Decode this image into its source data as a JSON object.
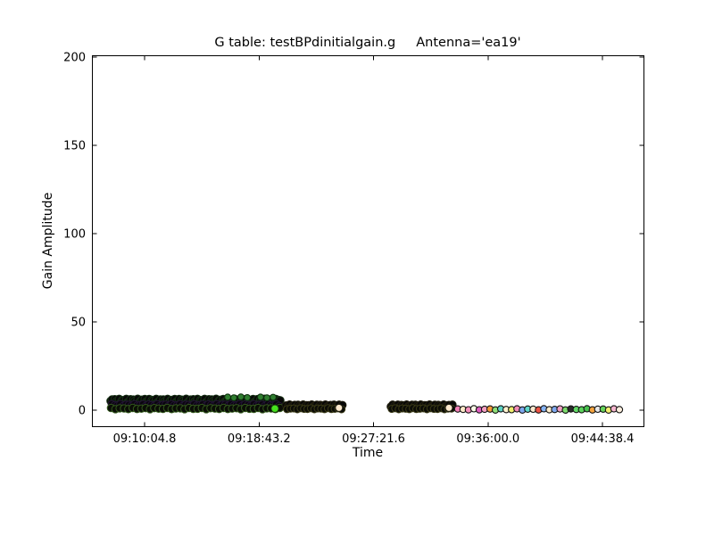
{
  "chart_data": {
    "type": "scatter",
    "title": "G table: testBPdinitialgain.g     Antenna='ea19'",
    "xlabel": "Time",
    "ylabel": "Gain Amplitude",
    "legend": "none",
    "grid": false,
    "marker": "circle",
    "background": "#ffffff",
    "frame_color": "#000000",
    "x_ticks": [
      {
        "label": "09:10:04.8",
        "seconds": 33004.8
      },
      {
        "label": "09:18:43.2",
        "seconds": 33523.2
      },
      {
        "label": "09:27:21.6",
        "seconds": 34041.6
      },
      {
        "label": "09:36:00.0",
        "seconds": 34560.0
      },
      {
        "label": "09:44:38.4",
        "seconds": 35078.4
      }
    ],
    "y_ticks": [
      {
        "label": "0",
        "value": 0
      },
      {
        "label": "50",
        "value": 50
      },
      {
        "label": "100",
        "value": 100
      },
      {
        "label": "150",
        "value": 150
      },
      {
        "label": "200",
        "value": 200
      }
    ],
    "xlim_seconds": [
      32766,
      35268
    ],
    "ylim": [
      -9.2,
      201.2
    ],
    "clusters": [
      {
        "name": "scan1-upper",
        "t_start": 32851,
        "t_end": 33619,
        "n": 120,
        "amp": 5.2,
        "amp_jitter": 1.2,
        "r": 4.3,
        "fill": "#070707",
        "edge": "#163014"
      },
      {
        "name": "scan1-mid",
        "t_start": 32856,
        "t_end": 33614,
        "n": 60,
        "amp": 2.9,
        "amp_jitter": 0.5,
        "r": 4.1,
        "fill": "#0a060d",
        "edge": "#221334"
      },
      {
        "name": "scan1-lower",
        "t_start": 32853,
        "t_end": 33617,
        "n": 40,
        "amp": 0.9,
        "amp_jitter": 0.35,
        "r": 4.2,
        "fill": "#0a0d06",
        "edge": "#33591c"
      },
      {
        "name": "scan2-upper",
        "t_start": 33646,
        "t_end": 33901,
        "n": 34,
        "amp": 2.6,
        "amp_jitter": 0.6,
        "r": 4.2,
        "fill": "#070707",
        "edge": "#201d0e"
      },
      {
        "name": "scan2-lower",
        "t_start": 33650,
        "t_end": 33897,
        "n": 17,
        "amp": 0.8,
        "amp_jitter": 0.3,
        "r": 4.0,
        "fill": "#0b0b06",
        "edge": "#3a3a16"
      },
      {
        "name": "scan3-upper",
        "t_start": 34120,
        "t_end": 34399,
        "n": 36,
        "amp": 2.6,
        "amp_jitter": 0.6,
        "r": 4.2,
        "fill": "#070707",
        "edge": "#201d0e"
      },
      {
        "name": "scan3-lower",
        "t_start": 34124,
        "t_end": 34395,
        "n": 18,
        "amp": 0.8,
        "amp_jitter": 0.3,
        "r": 4.0,
        "fill": "#0b0b06",
        "edge": "#3a3a16"
      }
    ],
    "highlight_points": [
      {
        "name": "green-glint",
        "t": 33381,
        "amp": 7.4,
        "r": 3.4,
        "fill": "#2f7d2f",
        "edge": "#0d2d0d"
      },
      {
        "name": "green-glint",
        "t": 33409,
        "amp": 7.0,
        "r": 3.4,
        "fill": "#2f7d2f",
        "edge": "#0d2d0d"
      },
      {
        "name": "green-glint",
        "t": 33441,
        "amp": 7.5,
        "r": 3.4,
        "fill": "#2f7d2f",
        "edge": "#0d2d0d"
      },
      {
        "name": "green-glint",
        "t": 33470,
        "amp": 7.1,
        "r": 3.4,
        "fill": "#2f7d2f",
        "edge": "#0d2d0d"
      },
      {
        "name": "green-glint",
        "t": 33530,
        "amp": 7.4,
        "r": 3.4,
        "fill": "#2f7d2f",
        "edge": "#0d2d0d"
      },
      {
        "name": "green-glint",
        "t": 33559,
        "amp": 7.0,
        "r": 3.4,
        "fill": "#2f7d2f",
        "edge": "#0d2d0d"
      },
      {
        "name": "green-glint",
        "t": 33587,
        "amp": 7.3,
        "r": 3.4,
        "fill": "#2f7d2f",
        "edge": "#0d2d0d"
      },
      {
        "name": "bright-green-dot",
        "t": 33595,
        "amp": 0.9,
        "r": 4.2,
        "fill": "#46e01e",
        "edge": "#123608"
      },
      {
        "name": "cream-dot-scan2-end",
        "t": 33885,
        "amp": 1.3,
        "r": 4.0,
        "fill": "#ffe9cc",
        "edge": "#1a1a10"
      },
      {
        "name": "cream-dot-scan3-end",
        "t": 34383,
        "amp": 1.3,
        "r": 4.0,
        "fill": "#ffe9cc",
        "edge": "#1a1a10"
      }
    ],
    "colored_points": {
      "t_start": 34423,
      "t_end": 35155,
      "amp": 0.45,
      "amp_jitter": 0.35,
      "r": 3.6,
      "edge": "#141414",
      "colors": [
        "#f080b5",
        "#fde9c8",
        "#f48fba",
        "#fafae6",
        "#e05ec0",
        "#f5a0c2",
        "#f59a39",
        "#8ede77",
        "#5cd2c3",
        "#fdf2cf",
        "#f0ee6e",
        "#f28cb7",
        "#7fa8f0",
        "#5fd7ca",
        "#fbe8cd",
        "#ee5244",
        "#85b3f3",
        "#fdeccd",
        "#7fa9ef",
        "#f0a0c3",
        "#7cdb6d",
        "#2b2b2b",
        "#62d866",
        "#5cd35c",
        "#47c14e",
        "#f5a43e",
        "#e9e9e9",
        "#65d35b",
        "#f1ee71",
        "#f5b5ce",
        "#fdeedd"
      ]
    }
  }
}
